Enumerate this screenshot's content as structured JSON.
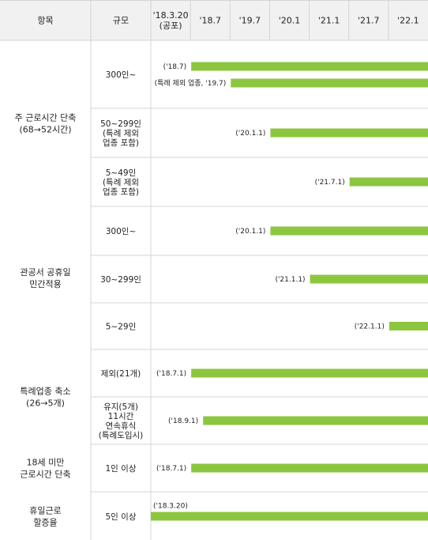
{
  "headers": {
    "item": "항목",
    "scale": "규모",
    "columns": [
      "'18.3.20\n(공포)",
      "'18.7",
      "'19.7",
      "'20.1",
      "'21.1",
      "'21.7",
      "'22.1"
    ]
  },
  "groups": [
    {
      "label": "주 근로시간 단축\n(68→52시간)",
      "rows": [
        {
          "scale": "300인~",
          "bars": [
            {
              "label": "('18.7)",
              "start_col": 1
            },
            {
              "label": "(특례 제외 업종, '19.7)",
              "start_col": 2
            }
          ]
        },
        {
          "scale": "50~299인\n(특례 제외\n업종 포함)",
          "bars": [
            {
              "label": "('20.1.1)",
              "start_col": 3
            }
          ]
        },
        {
          "scale": "5~49인\n(특례 제외\n업종 포함)",
          "bars": [
            {
              "label": "('21.7.1)",
              "start_col": 5
            }
          ]
        }
      ]
    },
    {
      "label": "관공서 공휴일\n민간적용",
      "rows": [
        {
          "scale": "300인~",
          "bars": [
            {
              "label": "('20.1.1)",
              "start_col": 3
            }
          ]
        },
        {
          "scale": "30~299인",
          "bars": [
            {
              "label": "('21.1.1)",
              "start_col": 4
            }
          ]
        },
        {
          "scale": "5~29인",
          "bars": [
            {
              "label": "('22.1.1)",
              "start_col": 6
            }
          ]
        }
      ]
    },
    {
      "label": "특례업종 축소\n(26→5개)",
      "rows": [
        {
          "scale": "제외(21개)",
          "bars": [
            {
              "label": "('18.7.1)",
              "start_col": 1
            }
          ]
        },
        {
          "scale": "유지(5개)\n11시간\n연속휴식\n(특례도입시)",
          "bars": [
            {
              "label": "('18.9.1)",
              "start_col": 1.3
            }
          ]
        }
      ]
    },
    {
      "label": "18세 미만\n근로시간 단축",
      "rows": [
        {
          "scale": "1인 이상",
          "bars": [
            {
              "label": "('18.7.1)",
              "start_col": 1
            }
          ]
        }
      ]
    },
    {
      "label": "휴일근로\n할증율",
      "rows": [
        {
          "scale": "5인 이상",
          "bars": [
            {
              "label": "('18.3.20)",
              "start_col": 0,
              "label_above": true
            }
          ]
        }
      ]
    }
  ],
  "colors": {
    "bar": "#8cc63f",
    "header_bg": "#f1f1f1",
    "grid": "#d4d4d4"
  }
}
